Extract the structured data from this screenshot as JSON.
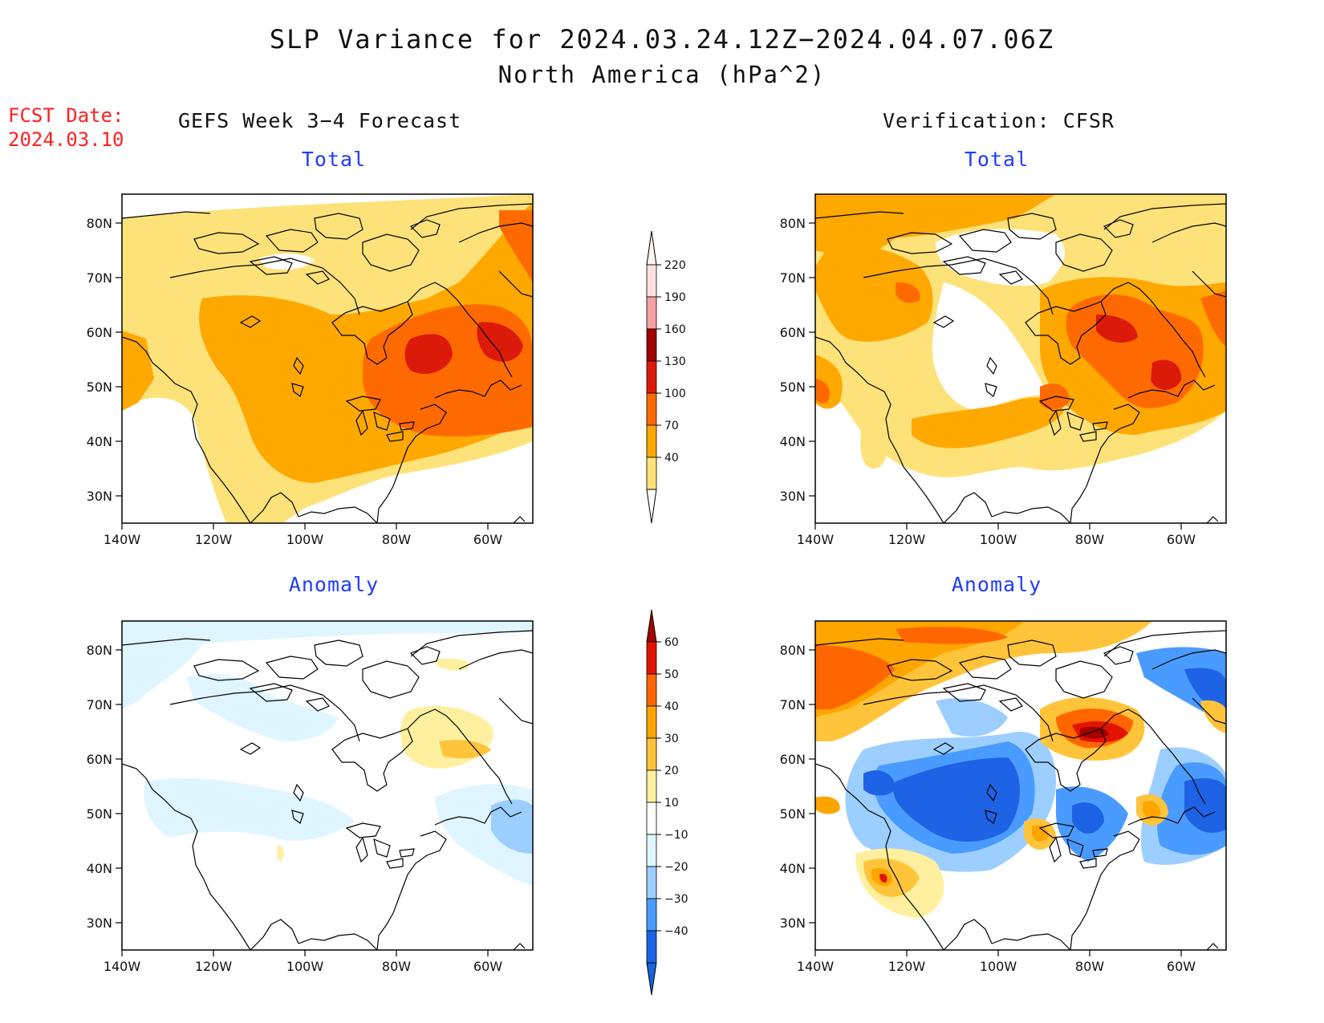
{
  "title": "SLP Variance for 2024.03.24.12Z−2024.04.07.06Z",
  "subtitle": "North America (hPa^2)",
  "fcst_label": "FCST Date:",
  "fcst_date": "2024.03.10",
  "left_heading": "GEFS Week 3−4 Forecast",
  "right_heading": "Verification: CFSR",
  "panels": {
    "gefs_total": {
      "title": "Total"
    },
    "cfsr_total": {
      "title": "Total"
    },
    "gefs_anom": {
      "title": "Anomaly"
    },
    "cfsr_anom": {
      "title": "Anomaly"
    }
  },
  "map_axes": {
    "lon_ticks": [
      "140W",
      "120W",
      "100W",
      "80W",
      "60W"
    ],
    "lat_ticks": [
      "80N",
      "70N",
      "60N",
      "50N",
      "40N",
      "30N"
    ]
  },
  "colorbars": {
    "total": {
      "labels": [
        "220",
        "190",
        "160",
        "130",
        "100",
        "70",
        "40"
      ],
      "colors": [
        "#fde0de",
        "#f5a0a4",
        "#a00000",
        "#dc1a0a",
        "#ff6a00",
        "#ffa800",
        "#fde27a"
      ]
    },
    "anomaly": {
      "labels": [
        "60",
        "50",
        "40",
        "30",
        "20",
        "10",
        "−10",
        "−20",
        "−30",
        "−40"
      ],
      "colors": [
        "#a50000",
        "#e21400",
        "#ff6600",
        "#ffa500",
        "#ffc43a",
        "#fff0a0",
        "#ffffff",
        "#dff5ff",
        "#9ccfff",
        "#4a9bff",
        "#1e63e6",
        "#1464dc"
      ]
    }
  },
  "palette": {
    "c40": "#fde27a",
    "c70": "#ffa800",
    "c100": "#ff6a00",
    "c130": "#dc1a0a",
    "c160": "#a00000",
    "a10": "#fff0a0",
    "a20": "#ffc43a",
    "a30": "#ffa500",
    "a40": "#ff6600",
    "a50": "#e21400",
    "a60": "#a50000",
    "n10": "#dff5ff",
    "n20": "#9ccfff",
    "n30": "#4a9bff",
    "n40": "#1e63e6"
  }
}
